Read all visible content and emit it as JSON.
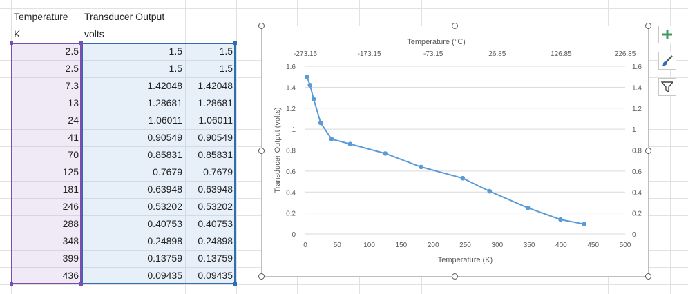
{
  "sheet": {
    "header_a": "Temperature",
    "header_b": "Transducer Output",
    "unit_a": "K",
    "unit_b": "volts",
    "rows": [
      {
        "k": "2.5",
        "v1": "1.5",
        "v2": "1.5"
      },
      {
        "k": "2.5",
        "v1": "1.5",
        "v2": "1.5"
      },
      {
        "k": "7.3",
        "v1": "1.42048",
        "v2": "1.42048"
      },
      {
        "k": "13",
        "v1": "1.28681",
        "v2": "1.28681"
      },
      {
        "k": "24",
        "v1": "1.06011",
        "v2": "1.06011"
      },
      {
        "k": "41",
        "v1": "0.90549",
        "v2": "0.90549"
      },
      {
        "k": "70",
        "v1": "0.85831",
        "v2": "0.85831"
      },
      {
        "k": "125",
        "v1": "0.7679",
        "v2": "0.7679"
      },
      {
        "k": "181",
        "v1": "0.63948",
        "v2": "0.63948"
      },
      {
        "k": "246",
        "v1": "0.53202",
        "v2": "0.53202"
      },
      {
        "k": "288",
        "v1": "0.40753",
        "v2": "0.40753"
      },
      {
        "k": "348",
        "v1": "0.24898",
        "v2": "0.24898"
      },
      {
        "k": "399",
        "v1": "0.13759",
        "v2": "0.13759"
      },
      {
        "k": "436",
        "v1": "0.09435",
        "v2": "0.09435"
      }
    ]
  },
  "chart_data": {
    "type": "scatter",
    "title": "",
    "xlabel": "Temperature (K)",
    "ylabel": "Transducer Output (volts)",
    "x2label": "Temperature (℃)",
    "xlim": [
      0,
      500
    ],
    "ylim": [
      0,
      1.6
    ],
    "x_ticks": [
      "0",
      "50",
      "100",
      "150",
      "200",
      "250",
      "300",
      "350",
      "400",
      "450",
      "500"
    ],
    "y_ticks": [
      "0",
      "0.2",
      "0.4",
      "0.6",
      "0.8",
      "1",
      "1.2",
      "1.4",
      "1.6"
    ],
    "x2_ticks": [
      "-273.15",
      "-173.15",
      "-73.15",
      "26.85",
      "126.85",
      "226.85"
    ],
    "grid": true,
    "line_color": "#5b9bd5",
    "series": [
      {
        "x": [
          2.5,
          2.5,
          7.3,
          13,
          24,
          41,
          70,
          125,
          181,
          246,
          288,
          348,
          399,
          436
        ],
        "y": [
          1.5,
          1.5,
          1.42048,
          1.28681,
          1.06011,
          0.90549,
          0.85831,
          0.7679,
          0.63948,
          0.53202,
          0.40753,
          0.24898,
          0.13759,
          0.09435
        ]
      }
    ]
  },
  "side_buttons": [
    {
      "icon": "plus-icon",
      "color": "#3f9b5c"
    },
    {
      "icon": "brush-icon",
      "color": "#2f6db5"
    },
    {
      "icon": "filter-icon",
      "color": "#444444"
    }
  ]
}
